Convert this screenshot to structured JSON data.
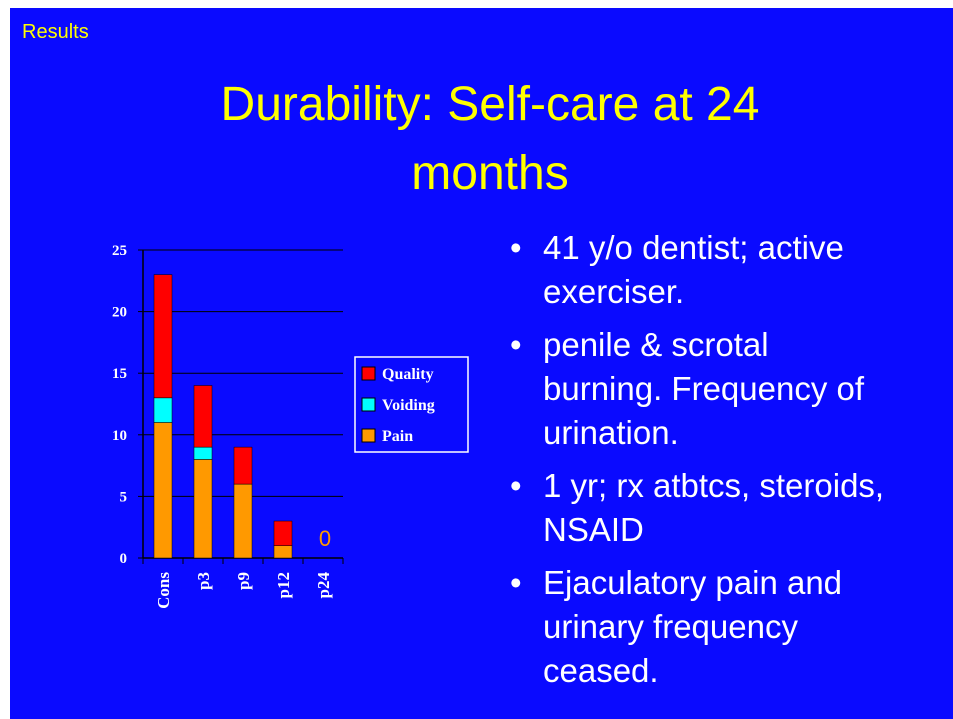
{
  "header": "Results",
  "title": [
    "Durability: Self-care at 24",
    "months"
  ],
  "bullets": [
    "41 y/o dentist; active exerciser.",
    "penile & scrotal burning. Frequency of urination.",
    "1 yr; rx atbtcs, steroids, NSAID",
    "Ejaculatory pain and urinary frequency ceased."
  ],
  "chart_data": {
    "type": "stacked_bar",
    "categories": [
      "Cons",
      "p3",
      "p9",
      "p12",
      "p24"
    ],
    "series": [
      {
        "name": "Pain",
        "color": "#ff9900",
        "values": [
          11,
          8,
          6,
          1,
          0
        ]
      },
      {
        "name": "Voiding",
        "color": "#00ffff",
        "values": [
          2,
          1,
          0,
          0,
          0
        ]
      },
      {
        "name": "Quality",
        "color": "#ff0000",
        "values": [
          10,
          5,
          3,
          2,
          0
        ]
      }
    ],
    "annotation": "0",
    "ylim": [
      0,
      25
    ],
    "yticks": [
      0,
      5,
      10,
      15,
      20,
      25
    ],
    "grid": true,
    "legend": "right"
  }
}
